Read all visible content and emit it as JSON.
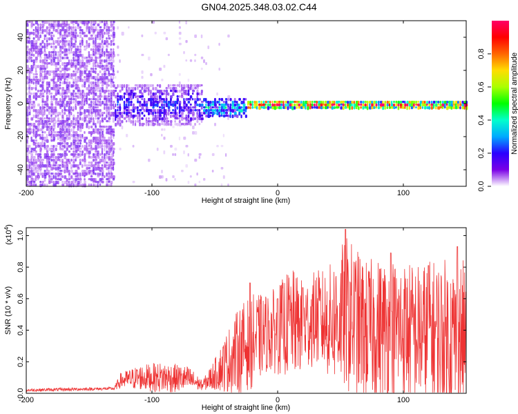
{
  "title": "GN04.2025.348.03.02.C44",
  "chart_data": [
    {
      "type": "heatmap",
      "xlabel": "Height of straight line (km)",
      "ylabel": "Frequency (Hz)",
      "xlim": [
        -200,
        150
      ],
      "ylim": [
        -50,
        50
      ],
      "xticks": [
        -200,
        -100,
        0,
        100
      ],
      "yticks": [
        -40,
        -20,
        0,
        20,
        40
      ],
      "colorbar": {
        "label": "Normalized spectral amplitude",
        "range": [
          0,
          1
        ],
        "ticks": [
          "0.0",
          "0.2",
          "0.4",
          "0.6",
          "0.8"
        ],
        "colormap": [
          "#ffffff",
          "#7a00e6",
          "#2a00ff",
          "#00aaff",
          "#00ffcc",
          "#00ff00",
          "#aaff00",
          "#ffdd00",
          "#ff6600",
          "#ff0000",
          "#ff0066"
        ]
      },
      "regions": [
        {
          "x_range": [
            -200,
            -130
          ],
          "f_range": [
            -50,
            50
          ],
          "amplitude": 0.1
        },
        {
          "x_range": [
            -130,
            -60
          ],
          "f_range": [
            -12,
            12
          ],
          "amplitude": 0.2
        },
        {
          "x_range": [
            -60,
            -25
          ],
          "f_range": [
            -8,
            4
          ],
          "amplitude": 0.35
        },
        {
          "x_range": [
            -25,
            150
          ],
          "f_range": [
            -3,
            3
          ],
          "amplitude": 0.9
        }
      ]
    },
    {
      "type": "line",
      "xlabel": "Height of straight line (km)",
      "ylabel": "SNR (10 * v/v)",
      "multiplier": "(x10",
      "multiplier_exp": "4",
      "multiplier_close": ")",
      "xlim": [
        -200,
        150
      ],
      "ylim": [
        0,
        1.05
      ],
      "xticks": [
        -200,
        -100,
        0,
        100
      ],
      "yticks": [
        "0.0",
        "0.2",
        "0.4",
        "0.6",
        "0.8",
        "1.0"
      ],
      "color": "#ee3333",
      "envelope": {
        "x": [
          -200,
          -130,
          -125,
          -110,
          -90,
          -70,
          -60,
          -50,
          -40,
          -30,
          -20,
          -10,
          0,
          10,
          20,
          30,
          40,
          55,
          70,
          90,
          110,
          130,
          150
        ],
        "y_mean": [
          0.02,
          0.03,
          0.08,
          0.1,
          0.1,
          0.09,
          0.05,
          0.12,
          0.2,
          0.28,
          0.33,
          0.38,
          0.4,
          0.45,
          0.42,
          0.48,
          0.45,
          0.5,
          0.4,
          0.42,
          0.38,
          0.36,
          0.35
        ],
        "y_spread": [
          0.01,
          0.01,
          0.05,
          0.08,
          0.1,
          0.08,
          0.03,
          0.1,
          0.2,
          0.28,
          0.3,
          0.25,
          0.28,
          0.35,
          0.3,
          0.3,
          0.35,
          0.5,
          0.45,
          0.45,
          0.45,
          0.5,
          0.5
        ]
      },
      "peaks": [
        {
          "x": 54,
          "y": 1.04
        },
        {
          "x": 90,
          "y": 0.89
        },
        {
          "x": 143,
          "y": 0.93
        },
        {
          "x": 120,
          "y": 0.81
        },
        {
          "x": 20,
          "y": 0.67
        },
        {
          "x": 0,
          "y": 0.6
        },
        {
          "x": -22,
          "y": 0.7
        }
      ]
    }
  ]
}
